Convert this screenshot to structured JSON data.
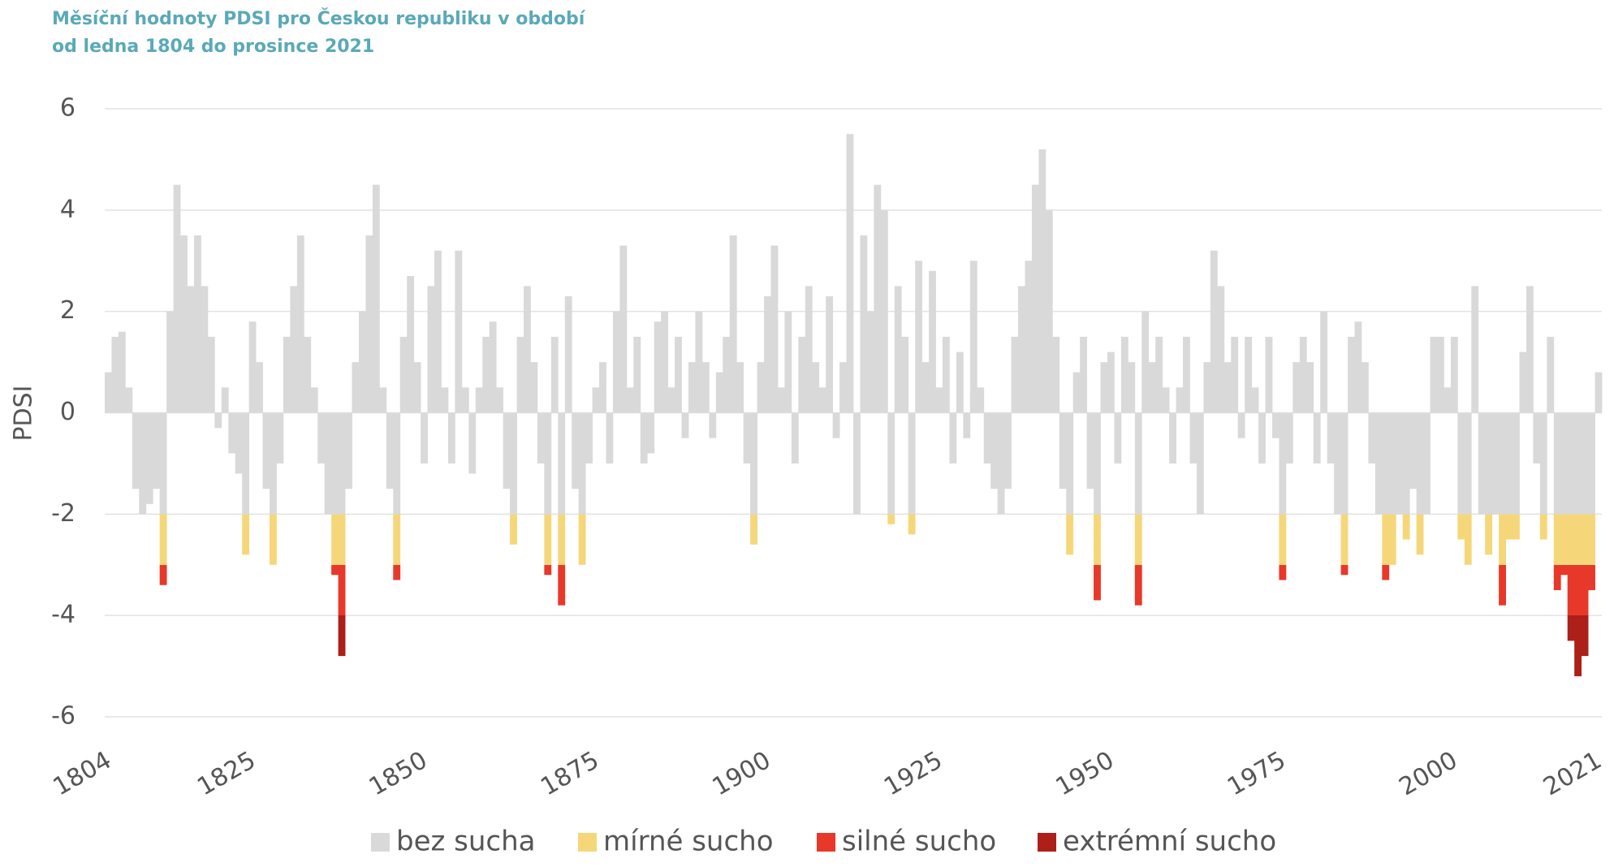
{
  "chart_data": {
    "type": "bar",
    "title": [
      "Měsíční hodnoty PDSI pro Českou republiku v období",
      "od ledna 1804 do prosince 2021"
    ],
    "y_label": "PDSI",
    "xlim": [
      1804,
      2022
    ],
    "xticks": [
      1804,
      1825,
      1850,
      1875,
      1900,
      1925,
      1950,
      1975,
      2000,
      2021
    ],
    "ylim": [
      -6,
      6
    ],
    "yticks": [
      -6,
      -4,
      -2,
      0,
      2,
      4,
      6
    ],
    "grid": true,
    "classes": [
      {
        "name": "bez sucha",
        "color": "#d9d9d9",
        "above": -2
      },
      {
        "name": "mírné sucho",
        "color": "#f5d77a",
        "above": -3
      },
      {
        "name": "silné sucho",
        "color": "#e8382a",
        "above": -4
      },
      {
        "name": "extrémní sucho",
        "color": "#ad1f19"
      }
    ],
    "x": [
      1804,
      1805,
      1806,
      1807,
      1808,
      1809,
      1810,
      1811,
      1812,
      1813,
      1814,
      1815,
      1816,
      1817,
      1818,
      1819,
      1820,
      1821,
      1822,
      1823,
      1824,
      1825,
      1826,
      1827,
      1828,
      1829,
      1830,
      1831,
      1832,
      1833,
      1834,
      1835,
      1836,
      1837,
      1838,
      1839,
      1840,
      1841,
      1842,
      1843,
      1844,
      1845,
      1846,
      1847,
      1848,
      1849,
      1850,
      1851,
      1852,
      1853,
      1854,
      1855,
      1856,
      1857,
      1858,
      1859,
      1860,
      1861,
      1862,
      1863,
      1864,
      1865,
      1866,
      1867,
      1868,
      1869,
      1870,
      1871,
      1872,
      1873,
      1874,
      1875,
      1876,
      1877,
      1878,
      1879,
      1880,
      1881,
      1882,
      1883,
      1884,
      1885,
      1886,
      1887,
      1888,
      1889,
      1890,
      1891,
      1892,
      1893,
      1894,
      1895,
      1896,
      1897,
      1898,
      1899,
      1900,
      1901,
      1902,
      1903,
      1904,
      1905,
      1906,
      1907,
      1908,
      1909,
      1910,
      1911,
      1912,
      1913,
      1914,
      1915,
      1916,
      1917,
      1918,
      1919,
      1920,
      1921,
      1922,
      1923,
      1924,
      1925,
      1926,
      1927,
      1928,
      1929,
      1930,
      1931,
      1932,
      1933,
      1934,
      1935,
      1936,
      1937,
      1938,
      1939,
      1940,
      1941,
      1942,
      1943,
      1944,
      1945,
      1946,
      1947,
      1948,
      1949,
      1950,
      1951,
      1952,
      1953,
      1954,
      1955,
      1956,
      1957,
      1958,
      1959,
      1960,
      1961,
      1962,
      1963,
      1964,
      1965,
      1966,
      1967,
      1968,
      1969,
      1970,
      1971,
      1972,
      1973,
      1974,
      1975,
      1976,
      1977,
      1978,
      1979,
      1980,
      1981,
      1982,
      1983,
      1984,
      1985,
      1986,
      1987,
      1988,
      1989,
      1990,
      1991,
      1992,
      1993,
      1994,
      1995,
      1996,
      1997,
      1998,
      1999,
      2000,
      2001,
      2002,
      2003,
      2004,
      2005,
      2006,
      2007,
      2008,
      2009,
      2010,
      2011,
      2012,
      2013,
      2014,
      2015,
      2016,
      2017,
      2018,
      2019,
      2020,
      2021
    ],
    "values": [
      0.8,
      1.5,
      1.6,
      0.5,
      -1.5,
      -2.0,
      -1.8,
      -1.5,
      -3.4,
      2.0,
      4.5,
      3.5,
      2.5,
      3.5,
      2.5,
      1.5,
      -0.3,
      0.5,
      -0.8,
      -1.2,
      -2.8,
      1.8,
      1.0,
      -1.5,
      -3.0,
      -1.0,
      1.5,
      2.5,
      3.5,
      1.5,
      0.5,
      -1.0,
      -2.0,
      -3.2,
      -4.8,
      -1.5,
      1.0,
      2.0,
      3.5,
      4.5,
      0.5,
      -1.5,
      -3.3,
      1.5,
      2.7,
      1.0,
      -1.0,
      2.5,
      3.2,
      0.5,
      -1.0,
      3.2,
      0.5,
      -1.2,
      0.5,
      1.5,
      1.8,
      0.5,
      -1.5,
      -2.6,
      1.5,
      2.5,
      1.0,
      -1.0,
      -3.2,
      1.5,
      -3.8,
      2.3,
      -1.5,
      -3.0,
      -1.0,
      0.5,
      1.0,
      -1.0,
      2.0,
      3.3,
      0.5,
      1.5,
      -1.0,
      -0.8,
      1.8,
      2.0,
      0.5,
      1.5,
      -0.5,
      1.0,
      2.0,
      1.0,
      -0.5,
      0.8,
      1.5,
      3.5,
      1.0,
      -1.0,
      -2.6,
      1.0,
      2.3,
      3.3,
      0.5,
      2.0,
      -1.0,
      1.5,
      2.5,
      1.0,
      0.5,
      2.3,
      -0.5,
      1.0,
      5.5,
      -2.0,
      3.5,
      2.0,
      4.5,
      4.0,
      -2.2,
      2.5,
      1.5,
      -2.4,
      3.0,
      1.0,
      2.8,
      0.5,
      1.5,
      -1.0,
      1.2,
      -0.5,
      3.0,
      0.5,
      -1.0,
      -1.5,
      -2.0,
      -1.5,
      1.5,
      2.5,
      3.0,
      4.5,
      5.2,
      4.0,
      1.5,
      -1.5,
      -2.8,
      0.8,
      1.5,
      -1.5,
      -3.7,
      1.0,
      1.2,
      -1.0,
      1.5,
      1.0,
      -3.8,
      2.0,
      1.0,
      1.5,
      0.5,
      -1.0,
      0.5,
      1.5,
      -1.0,
      -2.0,
      1.0,
      3.2,
      2.5,
      1.0,
      1.5,
      -0.5,
      1.5,
      0.5,
      -1.0,
      1.5,
      -0.5,
      -3.3,
      -1.0,
      1.0,
      1.5,
      1.0,
      -1.0,
      2.0,
      -1.0,
      -2.0,
      -3.2,
      1.5,
      1.8,
      1.0,
      -1.0,
      -2.0,
      -3.3,
      -3.0,
      -2.0,
      -2.5,
      -1.5,
      -2.8,
      -2.0,
      1.5,
      1.5,
      0.5,
      1.5,
      -2.5,
      -3.0,
      2.5,
      -2.0,
      -2.8,
      -2.0,
      -3.8,
      -2.5,
      -2.5,
      1.2,
      2.5,
      -1.0,
      -2.5,
      1.5,
      -3.5,
      -3.2,
      -4.5,
      -5.2,
      -4.8,
      -3.5,
      0.8
    ]
  }
}
